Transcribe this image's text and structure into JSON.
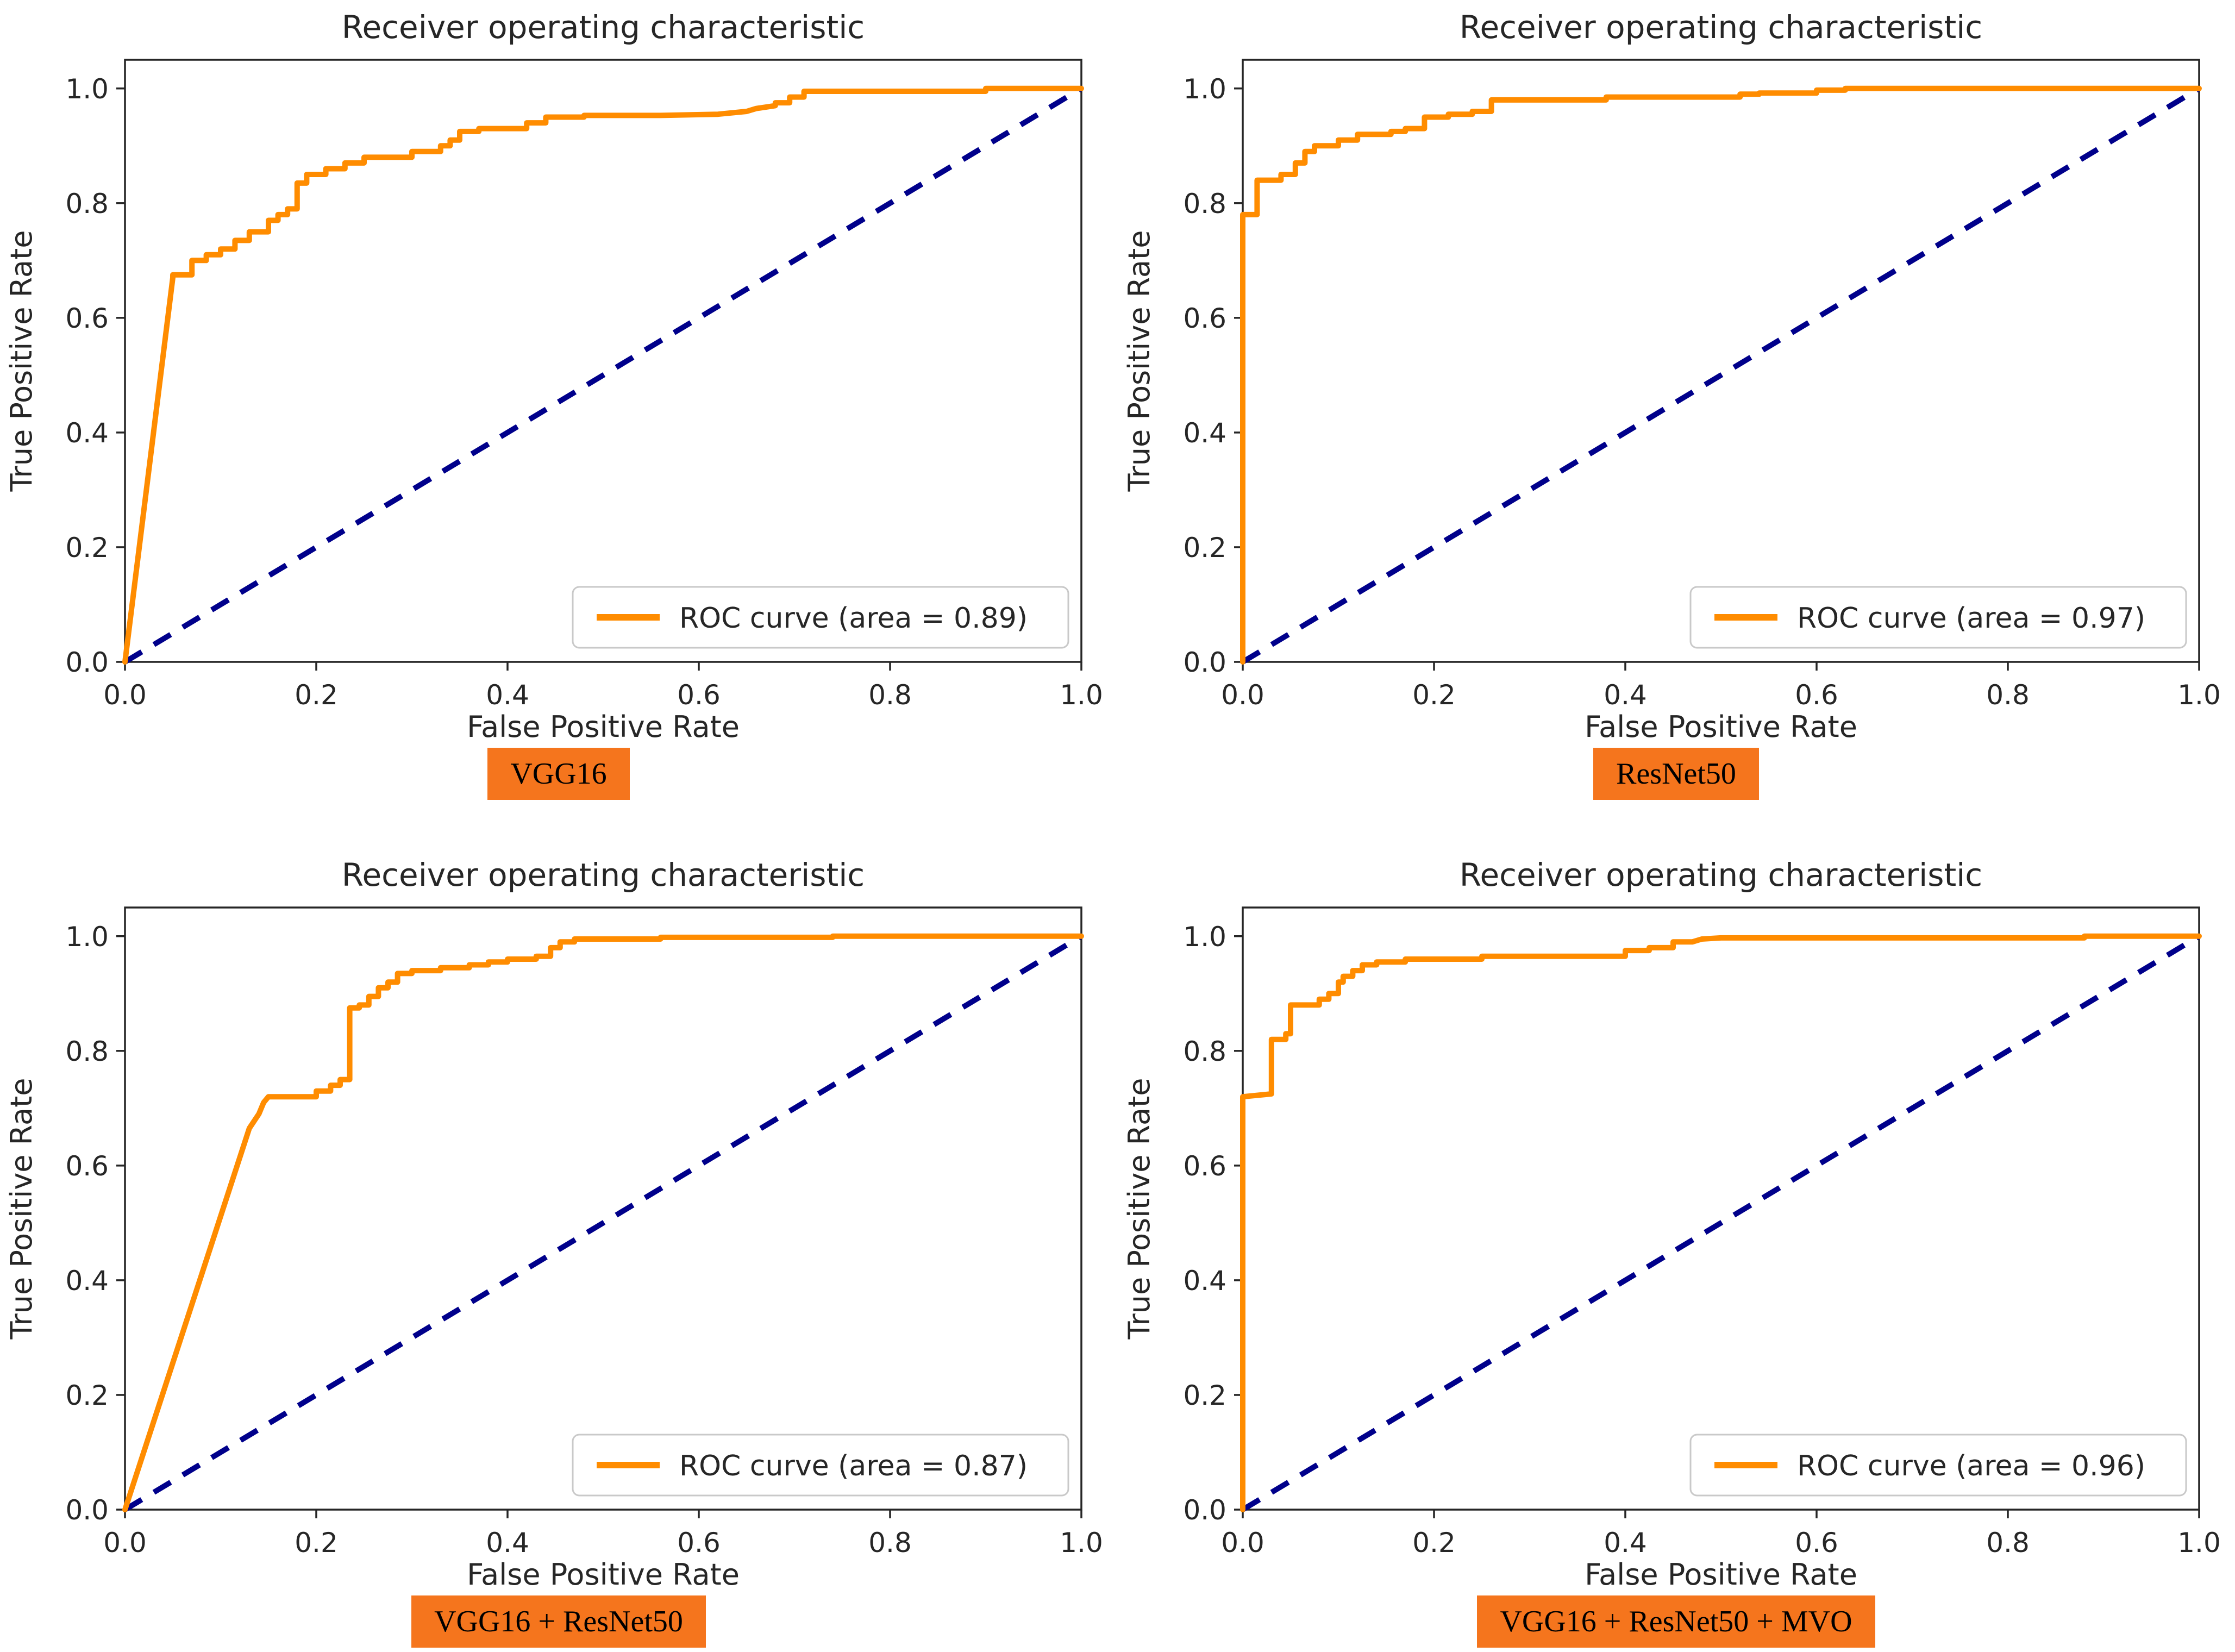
{
  "figure": {
    "background": "#ffffff",
    "layout": "2x2-grid-of-roc-plots"
  },
  "style": {
    "curve_color": "#FF8C00",
    "diagonal_color": "#00008B",
    "badge_color": "#F5751D",
    "text_color": "#262626",
    "spine_color": "#262626",
    "legend_border_color": "#c9c9c9",
    "legend_fill": "#ffffff"
  },
  "chart_data": [
    {
      "id": "vgg16",
      "type": "line",
      "title": "Receiver operating characteristic",
      "xlabel": "False Positive Rate",
      "ylabel": "True Positive Rate",
      "xlim": [
        0.0,
        1.0
      ],
      "ylim": [
        0.0,
        1.05
      ],
      "xticks": [
        0.0,
        0.2,
        0.4,
        0.6,
        0.8,
        1.0
      ],
      "yticks": [
        0.0,
        0.2,
        0.4,
        0.6,
        0.8,
        1.0
      ],
      "grid": false,
      "legend": {
        "position": "lower right",
        "entries": [
          {
            "label": "ROC curve (area = 0.89)",
            "color": "#FF8C00"
          }
        ]
      },
      "auc": 0.89,
      "badge_label": "VGG16",
      "series": [
        {
          "name": "ROC curve",
          "color": "#FF8C00",
          "style": "solid",
          "points": [
            [
              0,
              0
            ],
            [
              0.05,
              0.67
            ],
            [
              0.05,
              0.675
            ],
            [
              0.07,
              0.675
            ],
            [
              0.07,
              0.7
            ],
            [
              0.085,
              0.7
            ],
            [
              0.085,
              0.71
            ],
            [
              0.1,
              0.71
            ],
            [
              0.1,
              0.72
            ],
            [
              0.115,
              0.72
            ],
            [
              0.115,
              0.735
            ],
            [
              0.13,
              0.735
            ],
            [
              0.13,
              0.75
            ],
            [
              0.15,
              0.75
            ],
            [
              0.15,
              0.77
            ],
            [
              0.16,
              0.77
            ],
            [
              0.16,
              0.78
            ],
            [
              0.17,
              0.78
            ],
            [
              0.17,
              0.79
            ],
            [
              0.18,
              0.79
            ],
            [
              0.18,
              0.835
            ],
            [
              0.19,
              0.835
            ],
            [
              0.19,
              0.85
            ],
            [
              0.21,
              0.85
            ],
            [
              0.21,
              0.86
            ],
            [
              0.23,
              0.86
            ],
            [
              0.23,
              0.87
            ],
            [
              0.25,
              0.87
            ],
            [
              0.25,
              0.88
            ],
            [
              0.3,
              0.88
            ],
            [
              0.3,
              0.89
            ],
            [
              0.33,
              0.89
            ],
            [
              0.33,
              0.9
            ],
            [
              0.34,
              0.9
            ],
            [
              0.34,
              0.91
            ],
            [
              0.35,
              0.91
            ],
            [
              0.35,
              0.925
            ],
            [
              0.37,
              0.925
            ],
            [
              0.37,
              0.93
            ],
            [
              0.42,
              0.93
            ],
            [
              0.42,
              0.94
            ],
            [
              0.44,
              0.94
            ],
            [
              0.44,
              0.95
            ],
            [
              0.48,
              0.95
            ],
            [
              0.48,
              0.953
            ],
            [
              0.56,
              0.953
            ],
            [
              0.62,
              0.955
            ],
            [
              0.65,
              0.96
            ],
            [
              0.66,
              0.965
            ],
            [
              0.68,
              0.97
            ],
            [
              0.68,
              0.975
            ],
            [
              0.695,
              0.975
            ],
            [
              0.695,
              0.985
            ],
            [
              0.71,
              0.985
            ],
            [
              0.71,
              0.995
            ],
            [
              0.9,
              0.995
            ],
            [
              0.9,
              1.0
            ],
            [
              1,
              1
            ]
          ]
        },
        {
          "name": "chance",
          "color": "#00008B",
          "style": "dashed",
          "points": [
            [
              0,
              0
            ],
            [
              1,
              1
            ]
          ]
        }
      ]
    },
    {
      "id": "resnet50",
      "type": "line",
      "title": "Receiver operating characteristic",
      "xlabel": "False Positive Rate",
      "ylabel": "True Positive Rate",
      "xlim": [
        0.0,
        1.0
      ],
      "ylim": [
        0.0,
        1.05
      ],
      "xticks": [
        0.0,
        0.2,
        0.4,
        0.6,
        0.8,
        1.0
      ],
      "yticks": [
        0.0,
        0.2,
        0.4,
        0.6,
        0.8,
        1.0
      ],
      "grid": false,
      "legend": {
        "position": "lower right",
        "entries": [
          {
            "label": "ROC curve (area = 0.97)",
            "color": "#FF8C00"
          }
        ]
      },
      "auc": 0.97,
      "badge_label": "ResNet50",
      "series": [
        {
          "name": "ROC curve",
          "color": "#FF8C00",
          "style": "solid",
          "points": [
            [
              0,
              0
            ],
            [
              0,
              0.78
            ],
            [
              0.015,
              0.78
            ],
            [
              0.015,
              0.84
            ],
            [
              0.04,
              0.84
            ],
            [
              0.04,
              0.85
            ],
            [
              0.055,
              0.85
            ],
            [
              0.055,
              0.87
            ],
            [
              0.065,
              0.87
            ],
            [
              0.065,
              0.89
            ],
            [
              0.075,
              0.89
            ],
            [
              0.075,
              0.9
            ],
            [
              0.1,
              0.9
            ],
            [
              0.1,
              0.91
            ],
            [
              0.12,
              0.91
            ],
            [
              0.12,
              0.92
            ],
            [
              0.155,
              0.92
            ],
            [
              0.155,
              0.925
            ],
            [
              0.17,
              0.925
            ],
            [
              0.17,
              0.93
            ],
            [
              0.19,
              0.93
            ],
            [
              0.19,
              0.95
            ],
            [
              0.215,
              0.95
            ],
            [
              0.215,
              0.955
            ],
            [
              0.24,
              0.955
            ],
            [
              0.24,
              0.96
            ],
            [
              0.26,
              0.96
            ],
            [
              0.26,
              0.98
            ],
            [
              0.38,
              0.98
            ],
            [
              0.38,
              0.985
            ],
            [
              0.52,
              0.985
            ],
            [
              0.52,
              0.99
            ],
            [
              0.54,
              0.99
            ],
            [
              0.54,
              0.992
            ],
            [
              0.6,
              0.992
            ],
            [
              0.6,
              0.997
            ],
            [
              0.63,
              0.997
            ],
            [
              0.63,
              1.0
            ],
            [
              1,
              1
            ]
          ]
        },
        {
          "name": "chance",
          "color": "#00008B",
          "style": "dashed",
          "points": [
            [
              0,
              0
            ],
            [
              1,
              1
            ]
          ]
        }
      ]
    },
    {
      "id": "vgg16-resnet50",
      "type": "line",
      "title": "Receiver operating characteristic",
      "xlabel": "False Positive Rate",
      "ylabel": "True Positive Rate",
      "xlim": [
        0.0,
        1.0
      ],
      "ylim": [
        0.0,
        1.05
      ],
      "xticks": [
        0.0,
        0.2,
        0.4,
        0.6,
        0.8,
        1.0
      ],
      "yticks": [
        0.0,
        0.2,
        0.4,
        0.6,
        0.8,
        1.0
      ],
      "grid": false,
      "legend": {
        "position": "lower right",
        "entries": [
          {
            "label": "ROC curve (area = 0.87)",
            "color": "#FF8C00"
          }
        ]
      },
      "auc": 0.87,
      "badge_label": "VGG16 + ResNet50",
      "series": [
        {
          "name": "ROC curve",
          "color": "#FF8C00",
          "style": "solid",
          "points": [
            [
              0,
              0
            ],
            [
              0.13,
              0.665
            ],
            [
              0.14,
              0.69
            ],
            [
              0.145,
              0.71
            ],
            [
              0.15,
              0.72
            ],
            [
              0.2,
              0.72
            ],
            [
              0.2,
              0.73
            ],
            [
              0.215,
              0.73
            ],
            [
              0.215,
              0.74
            ],
            [
              0.225,
              0.74
            ],
            [
              0.225,
              0.75
            ],
            [
              0.235,
              0.75
            ],
            [
              0.235,
              0.875
            ],
            [
              0.245,
              0.875
            ],
            [
              0.245,
              0.88
            ],
            [
              0.255,
              0.88
            ],
            [
              0.255,
              0.895
            ],
            [
              0.265,
              0.895
            ],
            [
              0.265,
              0.91
            ],
            [
              0.275,
              0.91
            ],
            [
              0.275,
              0.92
            ],
            [
              0.285,
              0.92
            ],
            [
              0.285,
              0.935
            ],
            [
              0.3,
              0.935
            ],
            [
              0.3,
              0.94
            ],
            [
              0.33,
              0.94
            ],
            [
              0.33,
              0.945
            ],
            [
              0.36,
              0.945
            ],
            [
              0.36,
              0.95
            ],
            [
              0.38,
              0.95
            ],
            [
              0.38,
              0.955
            ],
            [
              0.4,
              0.955
            ],
            [
              0.4,
              0.96
            ],
            [
              0.43,
              0.96
            ],
            [
              0.43,
              0.965
            ],
            [
              0.445,
              0.965
            ],
            [
              0.445,
              0.98
            ],
            [
              0.455,
              0.98
            ],
            [
              0.455,
              0.99
            ],
            [
              0.47,
              0.99
            ],
            [
              0.47,
              0.995
            ],
            [
              0.56,
              0.995
            ],
            [
              0.56,
              0.998
            ],
            [
              0.74,
              0.998
            ],
            [
              0.74,
              1.0
            ],
            [
              1,
              1
            ]
          ]
        },
        {
          "name": "chance",
          "color": "#00008B",
          "style": "dashed",
          "points": [
            [
              0,
              0
            ],
            [
              1,
              1
            ]
          ]
        }
      ]
    },
    {
      "id": "vgg16-resnet50-mvo",
      "type": "line",
      "title": "Receiver operating characteristic",
      "xlabel": "False Positive Rate",
      "ylabel": "True Positive Rate",
      "xlim": [
        0.0,
        1.0
      ],
      "ylim": [
        0.0,
        1.05
      ],
      "xticks": [
        0.0,
        0.2,
        0.4,
        0.6,
        0.8,
        1.0
      ],
      "yticks": [
        0.0,
        0.2,
        0.4,
        0.6,
        0.8,
        1.0
      ],
      "grid": false,
      "legend": {
        "position": "lower right",
        "entries": [
          {
            "label": "ROC curve (area = 0.96)",
            "color": "#FF8C00"
          }
        ]
      },
      "auc": 0.96,
      "badge_label": "VGG16 + ResNet50 + MVO",
      "series": [
        {
          "name": "ROC curve",
          "color": "#FF8C00",
          "style": "solid",
          "points": [
            [
              0,
              0
            ],
            [
              0,
              0.72
            ],
            [
              0.03,
              0.725
            ],
            [
              0.03,
              0.82
            ],
            [
              0.045,
              0.82
            ],
            [
              0.045,
              0.83
            ],
            [
              0.05,
              0.83
            ],
            [
              0.05,
              0.88
            ],
            [
              0.08,
              0.88
            ],
            [
              0.08,
              0.89
            ],
            [
              0.09,
              0.89
            ],
            [
              0.09,
              0.9
            ],
            [
              0.1,
              0.9
            ],
            [
              0.1,
              0.92
            ],
            [
              0.105,
              0.92
            ],
            [
              0.105,
              0.93
            ],
            [
              0.115,
              0.93
            ],
            [
              0.115,
              0.94
            ],
            [
              0.125,
              0.94
            ],
            [
              0.125,
              0.95
            ],
            [
              0.14,
              0.95
            ],
            [
              0.14,
              0.955
            ],
            [
              0.17,
              0.955
            ],
            [
              0.17,
              0.96
            ],
            [
              0.25,
              0.96
            ],
            [
              0.25,
              0.965
            ],
            [
              0.4,
              0.965
            ],
            [
              0.4,
              0.975
            ],
            [
              0.425,
              0.975
            ],
            [
              0.425,
              0.98
            ],
            [
              0.45,
              0.98
            ],
            [
              0.45,
              0.99
            ],
            [
              0.47,
              0.99
            ],
            [
              0.48,
              0.995
            ],
            [
              0.5,
              0.997
            ],
            [
              0.88,
              0.997
            ],
            [
              0.88,
              1.0
            ],
            [
              1,
              1
            ]
          ]
        },
        {
          "name": "chance",
          "color": "#00008B",
          "style": "dashed",
          "points": [
            [
              0,
              0
            ],
            [
              1,
              1
            ]
          ]
        }
      ]
    }
  ]
}
